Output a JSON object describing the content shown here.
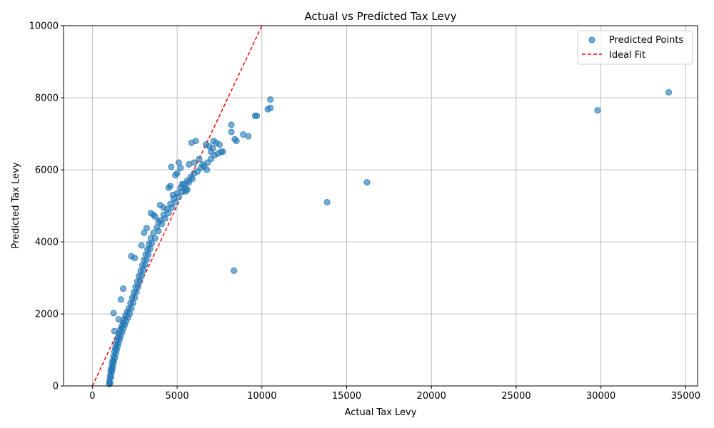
{
  "chart_data": {
    "type": "scatter",
    "title": "Actual vs Predicted Tax Levy",
    "xlabel": "Actual Tax Levy",
    "ylabel": "Predicted Tax Levy",
    "xlim": [
      -1700,
      35700
    ],
    "ylim": [
      0,
      10000
    ],
    "xticks": [
      0,
      5000,
      10000,
      15000,
      20000,
      25000,
      30000,
      35000
    ],
    "yticks": [
      0,
      2000,
      4000,
      6000,
      8000,
      10000
    ],
    "xtick_labels": [
      "0",
      "5000",
      "10000",
      "15000",
      "20000",
      "25000",
      "30000",
      "35000"
    ],
    "ytick_labels": [
      "0",
      "2000",
      "4000",
      "6000",
      "8000",
      "10000"
    ],
    "grid": true,
    "legend_position": "top-right",
    "colors": {
      "points": "#1f77b4",
      "ideal": "#ff0000"
    },
    "series": [
      {
        "name": "Predicted Points",
        "kind": "scatter",
        "points": [
          [
            1000,
            50
          ],
          [
            1010,
            120
          ],
          [
            1030,
            200
          ],
          [
            1050,
            80
          ],
          [
            1060,
            300
          ],
          [
            1080,
            420
          ],
          [
            1100,
            250
          ],
          [
            1120,
            500
          ],
          [
            1140,
            380
          ],
          [
            1160,
            620
          ],
          [
            1180,
            470
          ],
          [
            1200,
            700
          ],
          [
            1220,
            560
          ],
          [
            1250,
            820
          ],
          [
            1270,
            680
          ],
          [
            1300,
            950
          ],
          [
            1320,
            780
          ],
          [
            1350,
            1050
          ],
          [
            1380,
            900
          ],
          [
            1400,
            1150
          ],
          [
            1430,
            1000
          ],
          [
            1460,
            1250
          ],
          [
            1490,
            1100
          ],
          [
            1520,
            1350
          ],
          [
            1550,
            1200
          ],
          [
            1580,
            1450
          ],
          [
            1610,
            1300
          ],
          [
            1640,
            1550
          ],
          [
            1680,
            1400
          ],
          [
            1720,
            1650
          ],
          [
            1760,
            1500
          ],
          [
            1800,
            1750
          ],
          [
            1840,
            1600
          ],
          [
            1880,
            1850
          ],
          [
            1920,
            1700
          ],
          [
            1960,
            1950
          ],
          [
            2000,
            1800
          ],
          [
            2050,
            2050
          ],
          [
            2100,
            1900
          ],
          [
            2150,
            2150
          ],
          [
            2200,
            2000
          ],
          [
            2250,
            2300
          ],
          [
            2300,
            2150
          ],
          [
            2350,
            2450
          ],
          [
            2400,
            2300
          ],
          [
            2450,
            2600
          ],
          [
            2500,
            2450
          ],
          [
            2550,
            2750
          ],
          [
            2600,
            2600
          ],
          [
            2650,
            2900
          ],
          [
            2700,
            2750
          ],
          [
            2750,
            3050
          ],
          [
            2800,
            2900
          ],
          [
            2850,
            3200
          ],
          [
            2900,
            3050
          ],
          [
            2950,
            3350
          ],
          [
            3000,
            3200
          ],
          [
            3050,
            3500
          ],
          [
            3100,
            3350
          ],
          [
            3150,
            3650
          ],
          [
            3200,
            3500
          ],
          [
            3250,
            3800
          ],
          [
            3300,
            3650
          ],
          [
            3350,
            3950
          ],
          [
            3400,
            3800
          ],
          [
            3450,
            4100
          ],
          [
            3500,
            3950
          ],
          [
            3600,
            4250
          ],
          [
            3700,
            4100
          ],
          [
            3800,
            4400
          ],
          [
            3900,
            4300
          ],
          [
            4000,
            4600
          ],
          [
            4100,
            4500
          ],
          [
            4200,
            4750
          ],
          [
            4300,
            4650
          ],
          [
            4400,
            4900
          ],
          [
            4500,
            4800
          ],
          [
            4600,
            5050
          ],
          [
            4700,
            4950
          ],
          [
            4800,
            5200
          ],
          [
            4900,
            5100
          ],
          [
            5000,
            5350
          ],
          [
            5100,
            5250
          ],
          [
            5200,
            5500
          ],
          [
            5300,
            5400
          ],
          [
            5400,
            5600
          ],
          [
            5500,
            5500
          ],
          [
            5600,
            5700
          ],
          [
            5700,
            5650
          ],
          [
            5800,
            5800
          ],
          [
            5900,
            5750
          ],
          [
            6000,
            5900
          ],
          [
            6200,
            5950
          ],
          [
            6400,
            6050
          ],
          [
            6600,
            6100
          ],
          [
            6800,
            6200
          ],
          [
            7000,
            6300
          ],
          [
            7200,
            6400
          ],
          [
            7400,
            6450
          ],
          [
            7600,
            6500
          ],
          [
            1250,
            2020
          ],
          [
            1300,
            1520
          ],
          [
            1550,
            1850
          ],
          [
            1680,
            2400
          ],
          [
            1820,
            2700
          ],
          [
            2300,
            3600
          ],
          [
            2500,
            3550
          ],
          [
            2900,
            3900
          ],
          [
            3050,
            4250
          ],
          [
            3200,
            4380
          ],
          [
            3450,
            4800
          ],
          [
            3600,
            4750
          ],
          [
            3700,
            4700
          ],
          [
            3900,
            4550
          ],
          [
            4000,
            5020
          ],
          [
            4200,
            4950
          ],
          [
            4500,
            5500
          ],
          [
            4600,
            5550
          ],
          [
            4650,
            6080
          ],
          [
            4750,
            5300
          ],
          [
            4900,
            5850
          ],
          [
            5000,
            5900
          ],
          [
            5100,
            6200
          ],
          [
            5200,
            6050
          ],
          [
            5300,
            5600
          ],
          [
            5500,
            5400
          ],
          [
            5600,
            5450
          ],
          [
            5700,
            6150
          ],
          [
            5850,
            6750
          ],
          [
            6000,
            6200
          ],
          [
            6100,
            6800
          ],
          [
            6300,
            6300
          ],
          [
            6500,
            6150
          ],
          [
            6700,
            6700
          ],
          [
            6750,
            6000
          ],
          [
            6900,
            6650
          ],
          [
            7000,
            6500
          ],
          [
            7100,
            6600
          ],
          [
            7150,
            6800
          ],
          [
            7300,
            6750
          ],
          [
            7500,
            6700
          ],
          [
            7700,
            6500
          ],
          [
            8200,
            7250
          ],
          [
            8200,
            7050
          ],
          [
            8400,
            6850
          ],
          [
            8500,
            6800
          ],
          [
            8900,
            6980
          ],
          [
            9200,
            6930
          ],
          [
            9600,
            7500
          ],
          [
            9700,
            7500
          ],
          [
            10350,
            7680
          ],
          [
            10500,
            7720
          ],
          [
            10500,
            7950
          ],
          [
            13850,
            5100
          ],
          [
            16200,
            5650
          ],
          [
            8350,
            3200
          ],
          [
            29800,
            7650
          ],
          [
            34000,
            8150
          ]
        ]
      },
      {
        "name": "Ideal Fit",
        "kind": "line",
        "x": [
          0,
          10000
        ],
        "y": [
          0,
          10000
        ]
      }
    ]
  }
}
